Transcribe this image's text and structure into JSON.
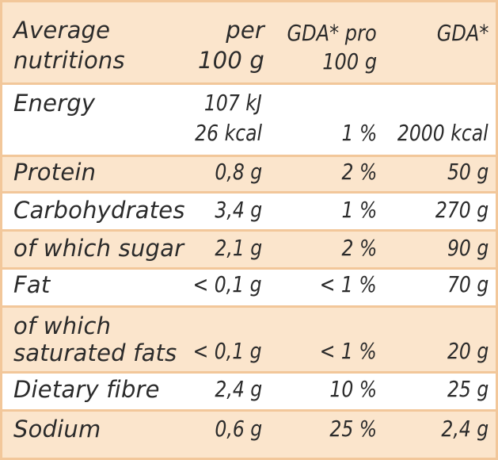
{
  "header": {
    "col0_line1": "Average",
    "col0_line2": "nutritions",
    "col1_line1": "per",
    "col1_line2": "100 g",
    "col2_line1": "GDA* pro",
    "col2_line2": "100 g",
    "col3_line1": "GDA*"
  },
  "rows": [
    {
      "label": "Energy",
      "per100_line1": "107 kJ",
      "per100_line2": "26 kcal",
      "gda_pct": "1 %",
      "gda": "2000 kcal"
    },
    {
      "label": "Protein",
      "per100": "0,8 g",
      "gda_pct": "2 %",
      "gda": "50 g"
    },
    {
      "label": "Carbohydrates",
      "per100": "3,4 g",
      "gda_pct": "1 %",
      "gda": "270 g"
    },
    {
      "label": "of which sugar",
      "per100": "2,1 g",
      "gda_pct": "2 %",
      "gda": "90 g"
    },
    {
      "label": "Fat",
      "per100": "< 0,1 g",
      "gda_pct": "< 1 %",
      "gda": "70 g"
    },
    {
      "label_line1": "of which",
      "label_line2": "saturated fats",
      "per100": "< 0,1 g",
      "gda_pct": "< 1 %",
      "gda": "20 g"
    },
    {
      "label": "Dietary fibre",
      "per100": "2,4 g",
      "gda_pct": "10 %",
      "gda": "25 g"
    },
    {
      "label": "Sodium",
      "per100": "0,6 g",
      "gda_pct": "25 %",
      "gda": "2,4 g"
    }
  ],
  "colors": {
    "border": "#f2c79a",
    "shade": "#fbe5cc",
    "text": "#2b2b2b"
  }
}
